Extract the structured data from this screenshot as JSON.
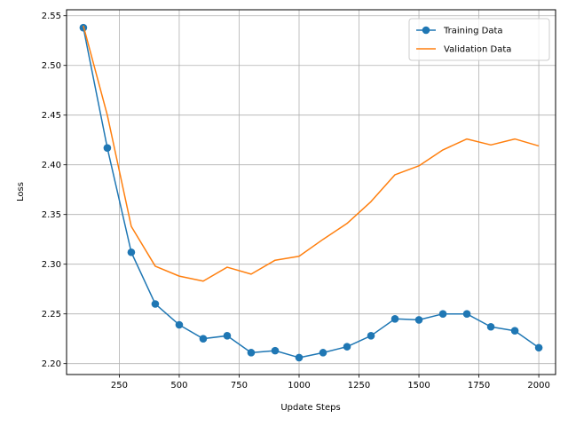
{
  "chart_data": {
    "type": "line",
    "title": "",
    "xlabel": "Update Steps",
    "ylabel": "Loss",
    "xlim": [
      30,
      2070
    ],
    "ylim": [
      2.189,
      2.556
    ],
    "xticks": [
      250,
      500,
      750,
      1000,
      1250,
      1500,
      1750,
      2000
    ],
    "yticks": [
      2.2,
      2.25,
      2.3,
      2.35,
      2.4,
      2.45,
      2.5,
      2.55
    ],
    "grid": true,
    "legend_position": "top-right",
    "x": [
      100,
      200,
      300,
      400,
      500,
      600,
      700,
      800,
      900,
      1000,
      1100,
      1200,
      1300,
      1400,
      1500,
      1600,
      1700,
      1800,
      1900,
      2000
    ],
    "series": [
      {
        "name": "Training Data",
        "color": "#1f77b4",
        "marker": "circle",
        "values": [
          2.538,
          2.417,
          2.312,
          2.26,
          2.239,
          2.225,
          2.228,
          2.211,
          2.213,
          2.206,
          2.211,
          2.217,
          2.228,
          2.245,
          2.244,
          2.25,
          2.25,
          2.237,
          2.233,
          2.216
        ]
      },
      {
        "name": "Validation Data",
        "color": "#ff7f0e",
        "marker": "none",
        "values": [
          2.54,
          2.45,
          2.338,
          2.298,
          2.288,
          2.283,
          2.297,
          2.29,
          2.304,
          2.308,
          2.325,
          2.341,
          2.363,
          2.39,
          2.399,
          2.415,
          2.426,
          2.42,
          2.426,
          2.419
        ]
      }
    ]
  }
}
